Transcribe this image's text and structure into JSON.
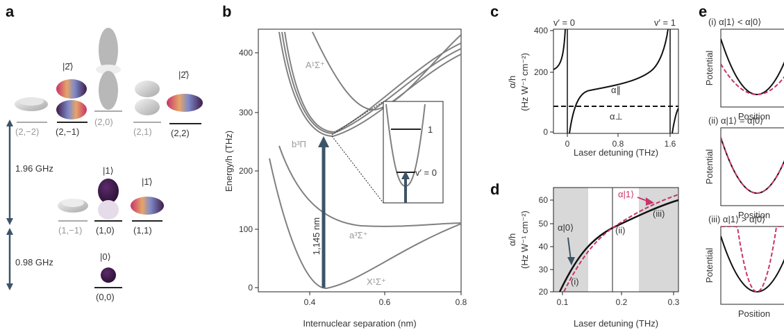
{
  "panels": {
    "a": "a",
    "b": "b",
    "c": "c",
    "d": "d",
    "e": "e"
  },
  "a": {
    "states": {
      "s2m2": "(2,−2)",
      "s2m1": "(2,−1)",
      "s20": "(2,0)",
      "s21": "(2,1)",
      "s22": "(2,2)",
      "s1m1": "(1,−1)",
      "s10": "(1,0)",
      "s11": "(1,1)",
      "s00": "(0,0)"
    },
    "kets": {
      "k2bar": "|2̄⟩",
      "k2hat": "|2̂⟩",
      "k1": "|1⟩",
      "k1bar": "|1̄⟩",
      "k0": "|0⟩"
    },
    "gap_upper": "1.96 GHz",
    "gap_lower": "0.98 GHz"
  },
  "b": {
    "ylabel": "Energy/h (THz)",
    "xlabel": "Internuclear separation (nm)",
    "yticks": [
      "0",
      "100",
      "200",
      "300",
      "400"
    ],
    "xticks": [
      "0.4",
      "0.6",
      "0.8"
    ],
    "states": {
      "A": "A¹Σ⁺",
      "b": "b³Π",
      "a": "a³Σ⁺",
      "X": "X¹Σ⁺"
    },
    "wavelength": "1,145 nm",
    "inset": {
      "level1": "1",
      "level0": "v′ = 0"
    }
  },
  "c": {
    "ylabel1": "α/h",
    "ylabel2": "(Hz W⁻¹ cm⁻²)",
    "xlabel": "Laser detuning (THz)",
    "yticks": [
      "0",
      "200",
      "400"
    ],
    "xticks": [
      "0",
      "0.8",
      "1.6"
    ],
    "top_left": "v′ = 0",
    "top_right": "v′ = 1",
    "par": "α∥",
    "perp": "α⊥"
  },
  "d": {
    "ylabel1": "α/h",
    "ylabel2": "(Hz W⁻¹ cm⁻²)",
    "xlabel": "Laser detuning (THz)",
    "yticks": [
      "20",
      "30",
      "40",
      "50",
      "60"
    ],
    "xticks": [
      "0.1",
      "0.2",
      "0.3"
    ],
    "alpha0": "α|0⟩",
    "alpha1": "α|1⟩",
    "region_i": "(i)",
    "region_ii": "(ii)",
    "region_iii": "(iii)"
  },
  "e": {
    "titles": [
      "(i) α|1⟩ < α|0⟩",
      "(ii) α|1⟩ = α|0⟩",
      "(iii) α|1⟩ > α|0⟩"
    ],
    "ylabel": "Potential",
    "xlabel": "Position"
  },
  "colors": {
    "dark": "#3d5468",
    "pink": "#c8336a",
    "gray": "#808080",
    "shade": "#d8d8d8",
    "purple": "#3e1c4a"
  }
}
